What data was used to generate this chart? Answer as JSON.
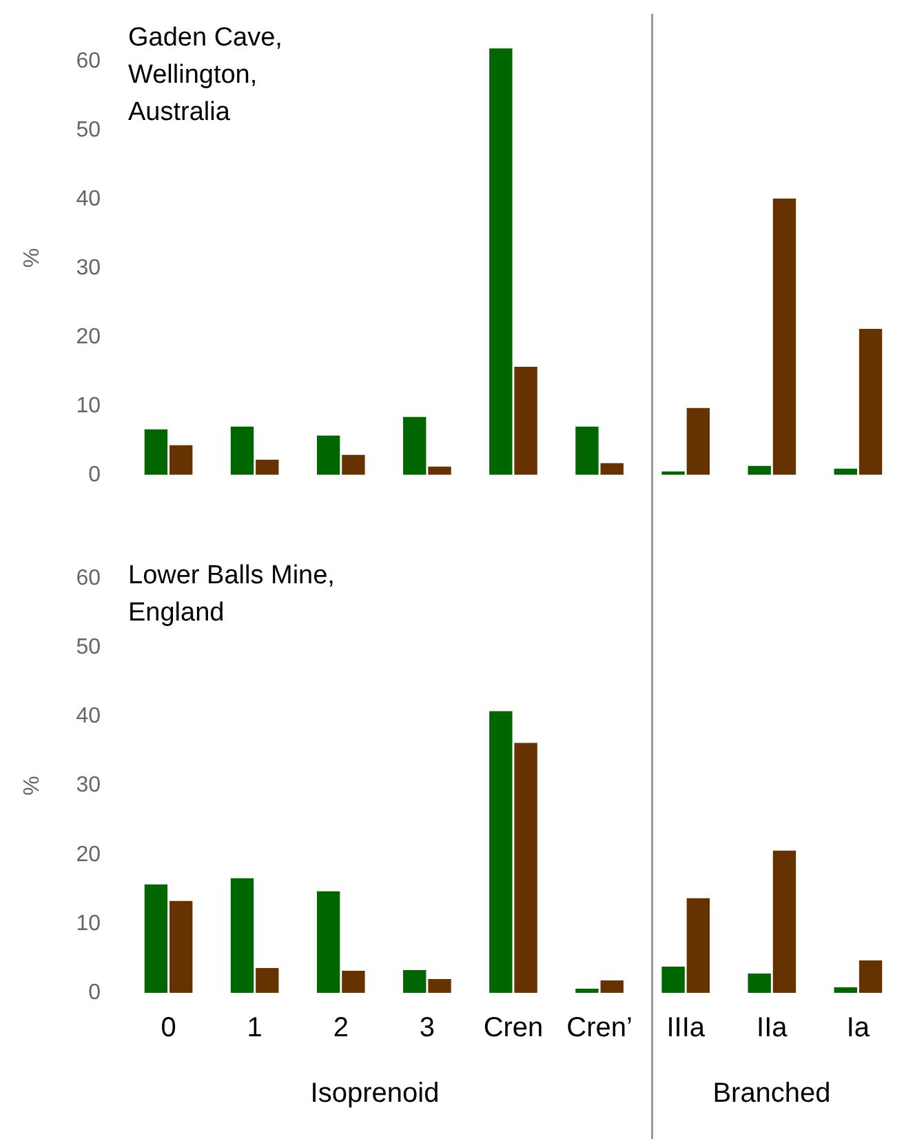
{
  "chart_data": [
    {
      "type": "bar",
      "title": "Gaden Cave, Wellington, Australia",
      "ylabel": "%",
      "categories": [
        null,
        null,
        null,
        null,
        null,
        null,
        null,
        null,
        null
      ],
      "tick_labels": "y",
      "ylim": [
        0,
        63
      ],
      "yticks": [
        0,
        10,
        20,
        30,
        40,
        50,
        60
      ],
      "series": [
        {
          "color": "#006600",
          "values": [
            6.6,
            7.0,
            5.7,
            8.4,
            61.9,
            7.0,
            0.5,
            1.3,
            0.9
          ]
        },
        {
          "color": "#663300",
          "values": [
            4.3,
            2.2,
            2.9,
            1.2,
            15.7,
            1.7,
            9.7,
            40.1,
            21.2
          ]
        }
      ]
    },
    {
      "type": "bar",
      "title": "Lower Balls Mine, England",
      "ylabel": "%",
      "categories": [
        "0",
        "1",
        "2",
        "3",
        "Cren",
        "Cren’",
        "IIIa",
        "IIa",
        "Ia"
      ],
      "ylim": [
        0,
        60
      ],
      "yticks": [
        0,
        10,
        20,
        30,
        40,
        50,
        60
      ],
      "annotations": [
        "Isoprenoid",
        "Branched"
      ],
      "series": [
        {
          "color": "#006600",
          "values": [
            15.7,
            16.6,
            14.7,
            3.3,
            40.8,
            0.6,
            3.8,
            2.8,
            0.8
          ]
        },
        {
          "color": "#663300",
          "values": [
            13.3,
            3.6,
            3.2,
            2.0,
            36.2,
            1.8,
            13.7,
            20.6,
            4.7
          ]
        }
      ]
    }
  ]
}
